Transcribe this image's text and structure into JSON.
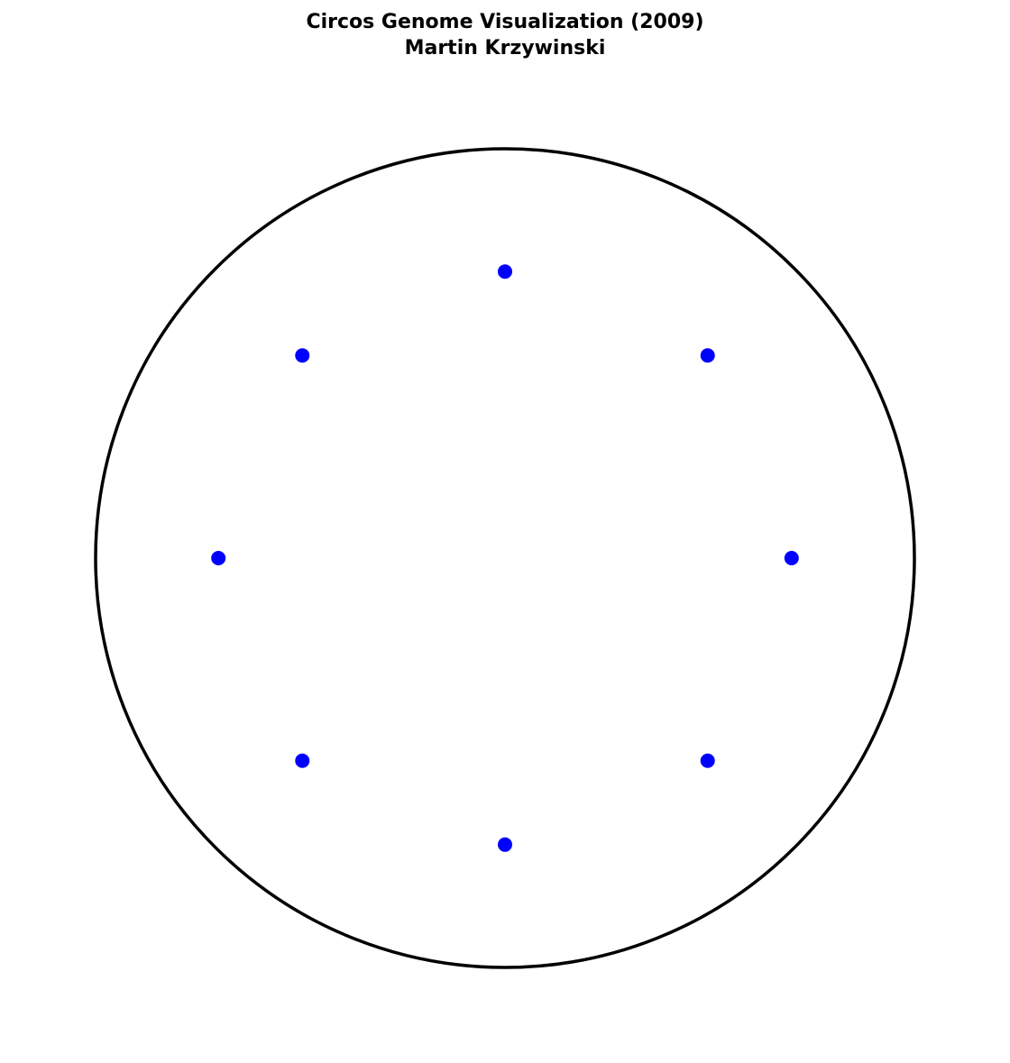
{
  "chart_data": {
    "type": "scatter",
    "title": "Circos Genome Visualization (2009)",
    "subtitle": "Martin Krzywinski",
    "xlabel": "",
    "ylabel": "",
    "xlim": [
      -1.0,
      1.0
    ],
    "ylim": [
      -1.0,
      1.0
    ],
    "grid": false,
    "axes_visible": false,
    "circle": {
      "center": [
        0,
        0
      ],
      "radius": 1.0,
      "color": "#000000"
    },
    "series": [
      {
        "name": "points",
        "color": "#0000ff",
        "points": [
          {
            "x": 0.7,
            "y": 0.0
          },
          {
            "x": 0.495,
            "y": 0.495
          },
          {
            "x": 0.0,
            "y": 0.7
          },
          {
            "x": -0.495,
            "y": 0.495
          },
          {
            "x": -0.7,
            "y": 0.0
          },
          {
            "x": -0.495,
            "y": -0.495
          },
          {
            "x": 0.0,
            "y": -0.7
          },
          {
            "x": 0.495,
            "y": -0.495
          }
        ]
      }
    ]
  }
}
